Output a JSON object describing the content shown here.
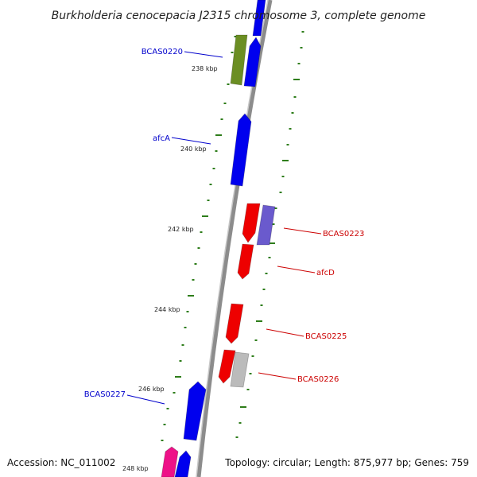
{
  "title": "Burkholderia cenocepacia J2315 chromosome 3, complete genome",
  "footer": {
    "accession": "Accession: NC_011002",
    "summary": "Topology: circular; Length: 875,977 bp; Genes: 759"
  },
  "colors": {
    "backbone": "#8c8c8c",
    "tick": "#2e7d1a",
    "forward_label": "#0000cc",
    "reverse_label": "#cc0000"
  },
  "kbp_labels": [
    "238 kbp",
    "240 kbp",
    "242 kbp",
    "244 kbp",
    "246 kbp",
    "248 kbp"
  ],
  "genes": [
    {
      "id": "top",
      "color": "#0000ee"
    },
    {
      "id": "olive",
      "color": "#6b8e23"
    },
    {
      "id": "BCAS0220",
      "color": "#0000ee",
      "label": "BCAS0220",
      "label_color": "#0000cc"
    },
    {
      "id": "afcA",
      "color": "#0000ee",
      "label": "afcA",
      "label_color": "#0000cc"
    },
    {
      "id": "BCAS0223a",
      "color": "#ee0000"
    },
    {
      "id": "BCAS0223",
      "color": "#6a5acd",
      "label": "BCAS0223",
      "label_color": "#cc0000"
    },
    {
      "id": "afcD",
      "color": "#ee0000",
      "label": "afcD",
      "label_color": "#cc0000"
    },
    {
      "id": "BCAS0225",
      "color": "#ee0000",
      "label": "BCAS0225",
      "label_color": "#cc0000"
    },
    {
      "id": "BCAS0226a",
      "color": "#ee0000"
    },
    {
      "id": "BCAS0226",
      "color": "#bbbbbb",
      "label": "BCAS0226",
      "label_color": "#cc0000"
    },
    {
      "id": "BCAS0227",
      "color": "#0000ee",
      "label": "BCAS0227",
      "label_color": "#0000cc"
    },
    {
      "id": "pink",
      "color": "#ee1188"
    },
    {
      "id": "bottom",
      "color": "#0000ee"
    }
  ]
}
